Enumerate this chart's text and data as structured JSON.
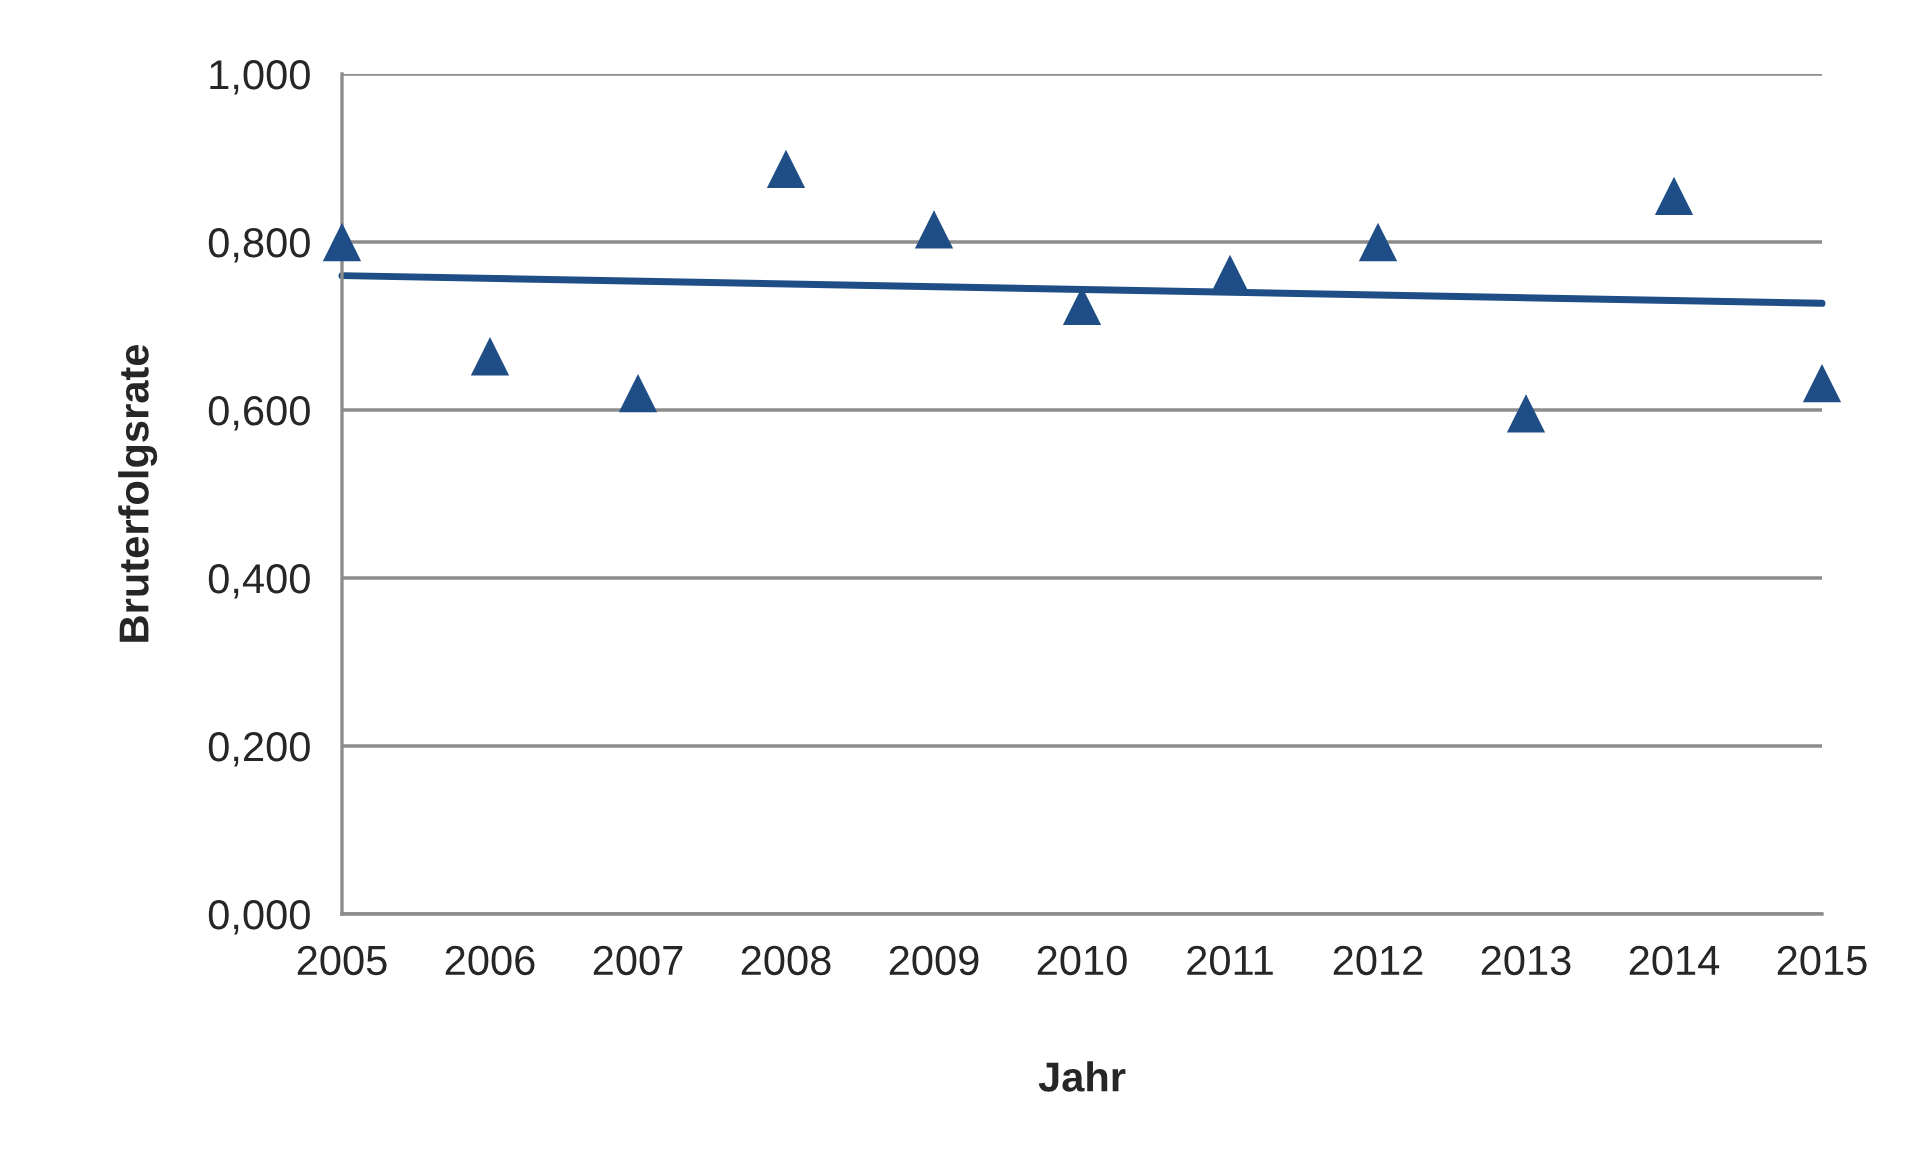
{
  "chart_data": {
    "type": "scatter",
    "xlabel": "Jahr",
    "ylabel": "Bruterfolgsrate",
    "x": [
      2005,
      2006,
      2007,
      2008,
      2009,
      2010,
      2011,
      2012,
      2013,
      2014,
      2015
    ],
    "series": [
      {
        "color": "#1f4e87",
        "marker": "triangle",
        "values": [
          0.8,
          0.664,
          0.62,
          0.887,
          0.815,
          0.724,
          0.762,
          0.8,
          0.596,
          0.855,
          0.632
        ]
      },
      {
        "type": "line",
        "color": "#1f4e87",
        "marker": "none",
        "line_style": "solid",
        "x": [
          2005,
          2015
        ],
        "values": [
          0.76,
          0.727
        ]
      }
    ],
    "xlim": [
      2005,
      2015
    ],
    "xticks": [
      2005,
      2006,
      2007,
      2008,
      2009,
      2010,
      2011,
      2012,
      2013,
      2014,
      2015
    ],
    "ylim": [
      0,
      1
    ],
    "yticks": [
      {
        "value": 0,
        "label": "0,000"
      },
      {
        "value": 0.2,
        "label": "0,200"
      },
      {
        "value": 0.4,
        "label": "0,400"
      },
      {
        "value": 0.6,
        "label": "0,600"
      },
      {
        "value": 0.8,
        "label": "0,800"
      },
      {
        "value": 1,
        "label": "1,000"
      }
    ],
    "grid": "y",
    "legend": false
  }
}
